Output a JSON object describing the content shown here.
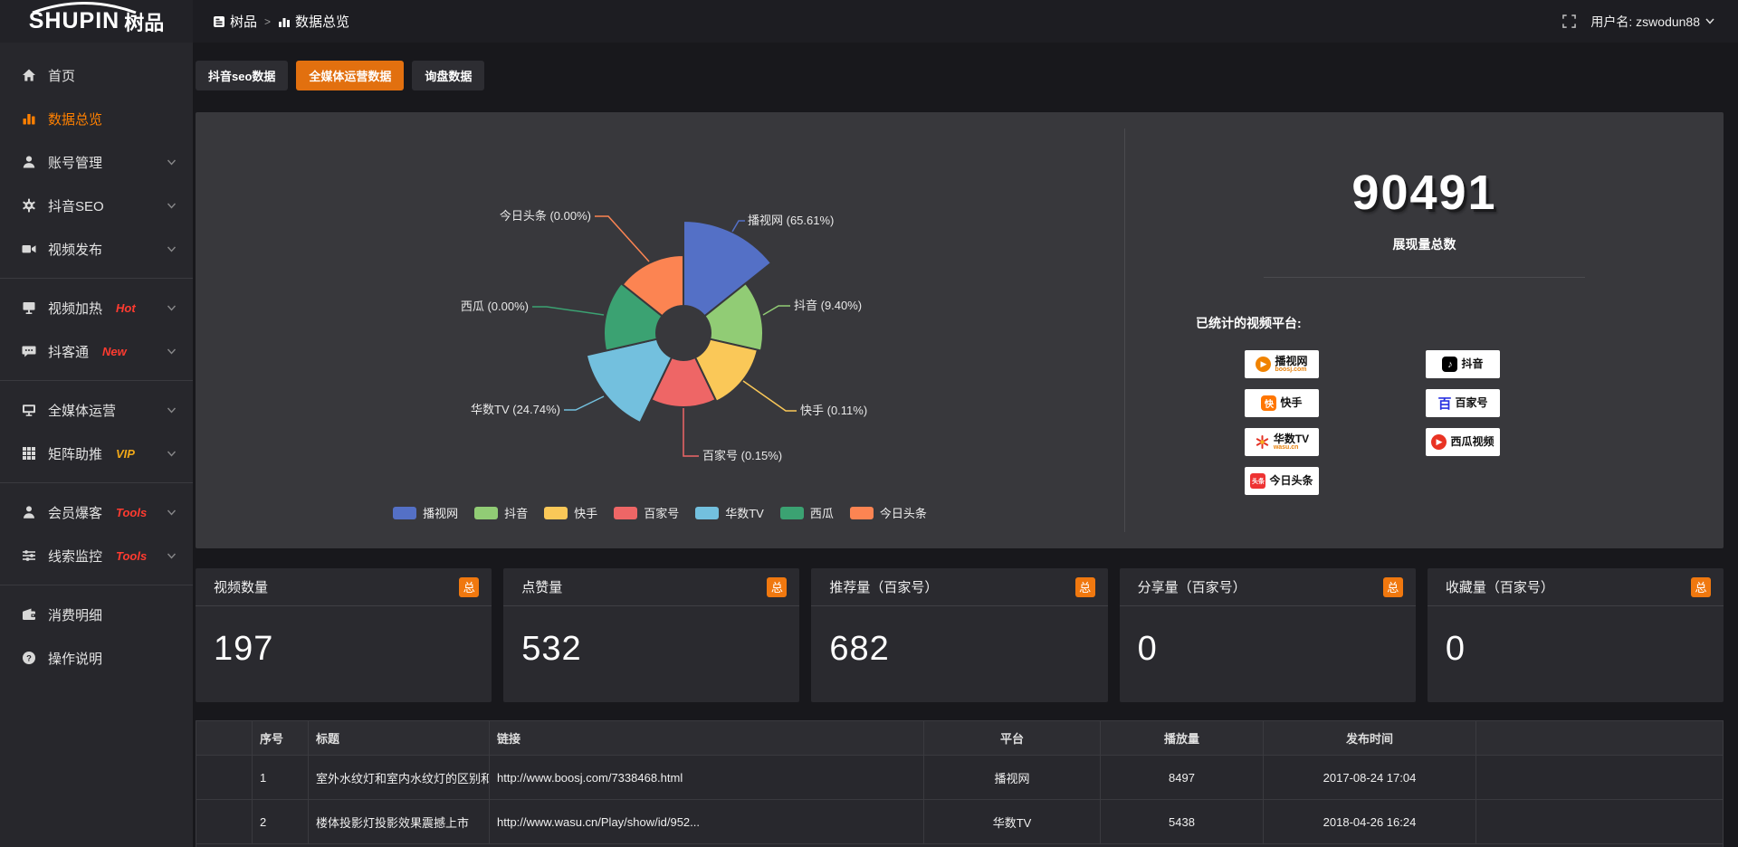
{
  "topbar": {
    "logo_main": "SHUPIN",
    "logo_suffix": "树品",
    "breadcrumb_home": "树品",
    "breadcrumb_sep": ">",
    "breadcrumb_current": "数据总览",
    "username": "用户名: zswodun88"
  },
  "sidebar": {
    "items": [
      {
        "label": "首页"
      },
      {
        "label": "数据总览",
        "active": true
      },
      {
        "label": "账号管理",
        "chevron": true
      },
      {
        "label": "抖音SEO",
        "chevron": true
      },
      {
        "label": "视频发布",
        "chevron": true
      },
      {
        "label": "视频加热",
        "badge": "Hot",
        "badge_color": "#ff3b30",
        "chevron": true
      },
      {
        "label": "抖客通",
        "badge": "New",
        "badge_color": "#ff3b30",
        "chevron": true
      },
      {
        "label": "全媒体运营",
        "chevron": true
      },
      {
        "label": "矩阵助推",
        "badge": "VIP",
        "badge_color": "#f0a818",
        "chevron": true
      },
      {
        "label": "会员爆客",
        "badge": "Tools",
        "badge_color": "#ff3b30",
        "chevron": true
      },
      {
        "label": "线索监控",
        "badge": "Tools",
        "badge_color": "#ff3b30",
        "chevron": true
      },
      {
        "label": "消费明细"
      },
      {
        "label": "操作说明"
      }
    ]
  },
  "tabs": {
    "items": [
      {
        "label": "抖音seo数据",
        "active": false
      },
      {
        "label": "全媒体运营数据",
        "active": true
      },
      {
        "label": "询盘数据",
        "active": false
      }
    ]
  },
  "chart_data": {
    "type": "pie",
    "variant": "nightingale-rose",
    "title": "",
    "categories": [
      "播视网",
      "抖音",
      "快手",
      "百家号",
      "华数TV",
      "西瓜",
      "今日头条"
    ],
    "values": [
      65.61,
      9.4,
      0.11,
      0.15,
      24.74,
      0.0,
      0.0
    ],
    "unit": "%",
    "labels": [
      "播视网 (65.61%)",
      "抖音 (9.40%)",
      "快手 (0.11%)",
      "百家号 (0.15%)",
      "华数TV (24.74%)",
      "西瓜 (0.00%)",
      "今日头条 (0.00%)"
    ],
    "colors": [
      "#5470c6",
      "#91cc75",
      "#fac858",
      "#ee6666",
      "#73c0de",
      "#3ba272",
      "#fc8452"
    ],
    "outer_radii": [
      124,
      88,
      84,
      82,
      110,
      88,
      86
    ],
    "inner_radius": 30,
    "legend": [
      "播视网",
      "抖音",
      "快手",
      "百家号",
      "华数TV",
      "西瓜",
      "今日头条"
    ],
    "legend_position": "bottom",
    "grid": false
  },
  "summary": {
    "total": "90491",
    "total_label": "展现量总数",
    "platforms_label": "已统计的视频平台:",
    "platform_badges": [
      {
        "name": "播视网",
        "sub": "boosj.com"
      },
      {
        "name": "快手",
        "sub": ""
      },
      {
        "name": "华数TV",
        "sub": "wasu.cn"
      },
      {
        "name": "今日头条",
        "sub": ""
      },
      {
        "name": "抖音",
        "sub": ""
      },
      {
        "name": "百家号",
        "sub": ""
      },
      {
        "name": "西瓜视频",
        "sub": ""
      }
    ]
  },
  "stat_cards": [
    {
      "title": "视频数量",
      "badge": "总",
      "value": "197"
    },
    {
      "title": "点赞量",
      "badge": "总",
      "value": "532"
    },
    {
      "title": "推荐量（百家号）",
      "badge": "总",
      "value": "682"
    },
    {
      "title": "分享量（百家号）",
      "badge": "总",
      "value": "0"
    },
    {
      "title": "收藏量（百家号）",
      "badge": "总",
      "value": "0"
    }
  ],
  "table": {
    "headers": {
      "num": "序号",
      "title": "标题",
      "link": "链接",
      "platform": "平台",
      "plays": "播放量",
      "time": "发布时间"
    },
    "rows": [
      {
        "num": "1",
        "title": "室外水纹灯和室内水纹灯的区别和简介",
        "link": "http://www.boosj.com/7338468.html",
        "platform": "播视网",
        "plays": "8497",
        "time": "2017-08-24 17:04"
      },
      {
        "num": "2",
        "title": "楼体投影灯投影效果震撼上市",
        "link": "http://www.wasu.cn/Play/show/id/952...",
        "platform": "华数TV",
        "plays": "5438",
        "time": "2018-04-26 16:24"
      }
    ]
  },
  "colors": {
    "accent_orange": "#e2700f",
    "sidebar_active": "#ff8000",
    "link_orange": "#e8883a",
    "badge_orange": "#f0780f"
  }
}
